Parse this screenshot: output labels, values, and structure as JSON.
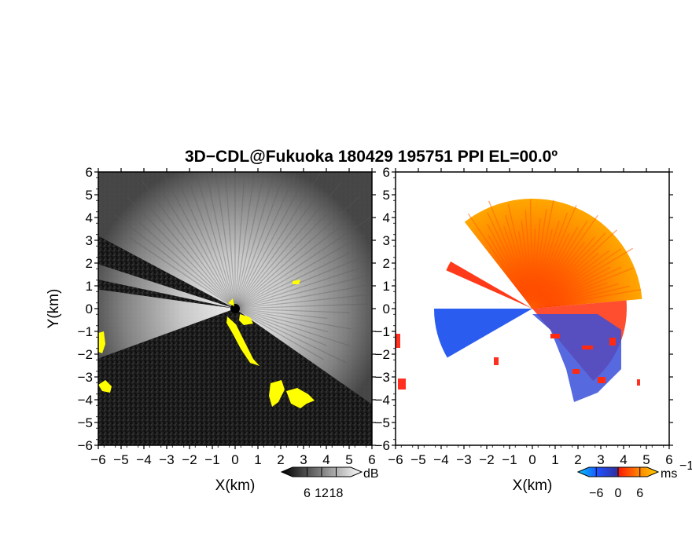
{
  "chart_data": [
    {
      "type": "heatmap",
      "title": "3D−CDL@Fukuoka 180429 195751 PPI EL=00.0º",
      "panel": "reflectivity",
      "xlabel": "X(km)",
      "ylabel": "Y(km)",
      "xlim": [
        -6,
        6
      ],
      "ylim": [
        -6,
        6
      ],
      "x_ticks": [
        "−6",
        "−5",
        "−4",
        "−3",
        "−2",
        "−1",
        "0",
        "1",
        "2",
        "3",
        "4",
        "5",
        "6"
      ],
      "y_ticks": [
        "6",
        "5",
        "4",
        "3",
        "2",
        "1",
        "0",
        "−1",
        "−2",
        "−3",
        "−4",
        "−5",
        "−6"
      ],
      "background_color": "#1a1a1a",
      "echo_color": "#e6e6e6",
      "highlight_color": "#ffff00",
      "colorbar": {
        "ticks": [
          "6",
          "12",
          "18"
        ],
        "unit": "dB",
        "range": [
          0,
          24
        ],
        "colors": [
          "#000000",
          "#ffffff"
        ]
      }
    },
    {
      "type": "heatmap",
      "panel": "doppler velocity",
      "xlabel": "X(km)",
      "xlim": [
        -6,
        6
      ],
      "ylim": [
        -6,
        6
      ],
      "x_ticks": [
        "−6",
        "−5",
        "−4",
        "−3",
        "−2",
        "−1",
        "0",
        "1",
        "2",
        "3",
        "4",
        "5",
        "6"
      ],
      "y_ticks": [
        "6",
        "5",
        "4",
        "3",
        "2",
        "1",
        "0",
        "−1",
        "−2",
        "−3",
        "−4",
        "−5",
        "−6"
      ],
      "background_color": "#ffffff",
      "colorbar": {
        "ticks": [
          "−6",
          "0",
          "6"
        ],
        "unit": "ms",
        "unit_exponent": "−1",
        "range": [
          -8,
          8
        ],
        "colors": [
          "#00c8ff",
          "#2050ff",
          "#3030a0",
          "#ff2000",
          "#ff8000",
          "#ffd000"
        ]
      }
    }
  ]
}
